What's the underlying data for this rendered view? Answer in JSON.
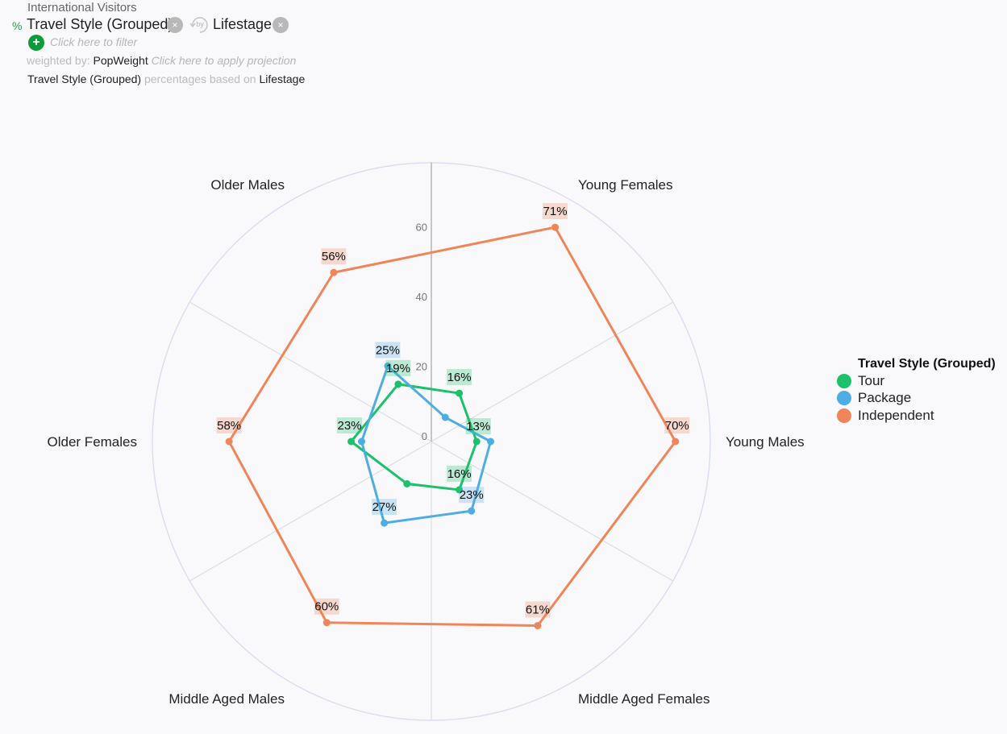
{
  "header": {
    "dataset_title": "International Visitors",
    "percent_sign": "%",
    "primary_variable": "Travel Style (Grouped)",
    "by_label": "by",
    "secondary_variable": "Lifestage",
    "remove_symbol": "×",
    "add_symbol": "+",
    "filter_placeholder": "Click here to filter",
    "weighted_by_label": "weighted by:",
    "weight_variable": "PopWeight",
    "projection_placeholder": "Click here to apply projection",
    "percent_basis_primary": "Travel Style (Grouped)",
    "percent_basis_text": "percentages based on",
    "percent_basis_secondary": "Lifestage"
  },
  "colors": {
    "Tour": "#1cc16a",
    "Package": "#4eaee3",
    "Independent": "#f0855a",
    "grid": "#d6dbef",
    "spoke": "#dedede"
  },
  "chart_data": {
    "type": "radar",
    "categories": [
      "Young Females",
      "Young Males",
      "Middle Aged Females",
      "Middle Aged Males",
      "Older Females",
      "Older Males"
    ],
    "radial_ticks": [
      "0",
      "20",
      "40",
      "60"
    ],
    "rmax": 80,
    "series": [
      {
        "name": "Tour",
        "values": [
          16,
          13,
          16,
          14,
          23,
          19
        ],
        "labels": [
          "16%",
          "13%",
          "16%",
          "",
          "23%",
          "19%"
        ]
      },
      {
        "name": "Package",
        "values": [
          8,
          17,
          23,
          27,
          20,
          25
        ],
        "labels": [
          "",
          "",
          "23%",
          "27%",
          "",
          "25%"
        ]
      },
      {
        "name": "Independent",
        "values": [
          71,
          70,
          61,
          60,
          58,
          56
        ],
        "labels": [
          "71%",
          "70%",
          "61%",
          "60%",
          "58%",
          "56%"
        ]
      }
    ],
    "legend": {
      "title": "Travel Style (Grouped)",
      "position": "right"
    }
  }
}
